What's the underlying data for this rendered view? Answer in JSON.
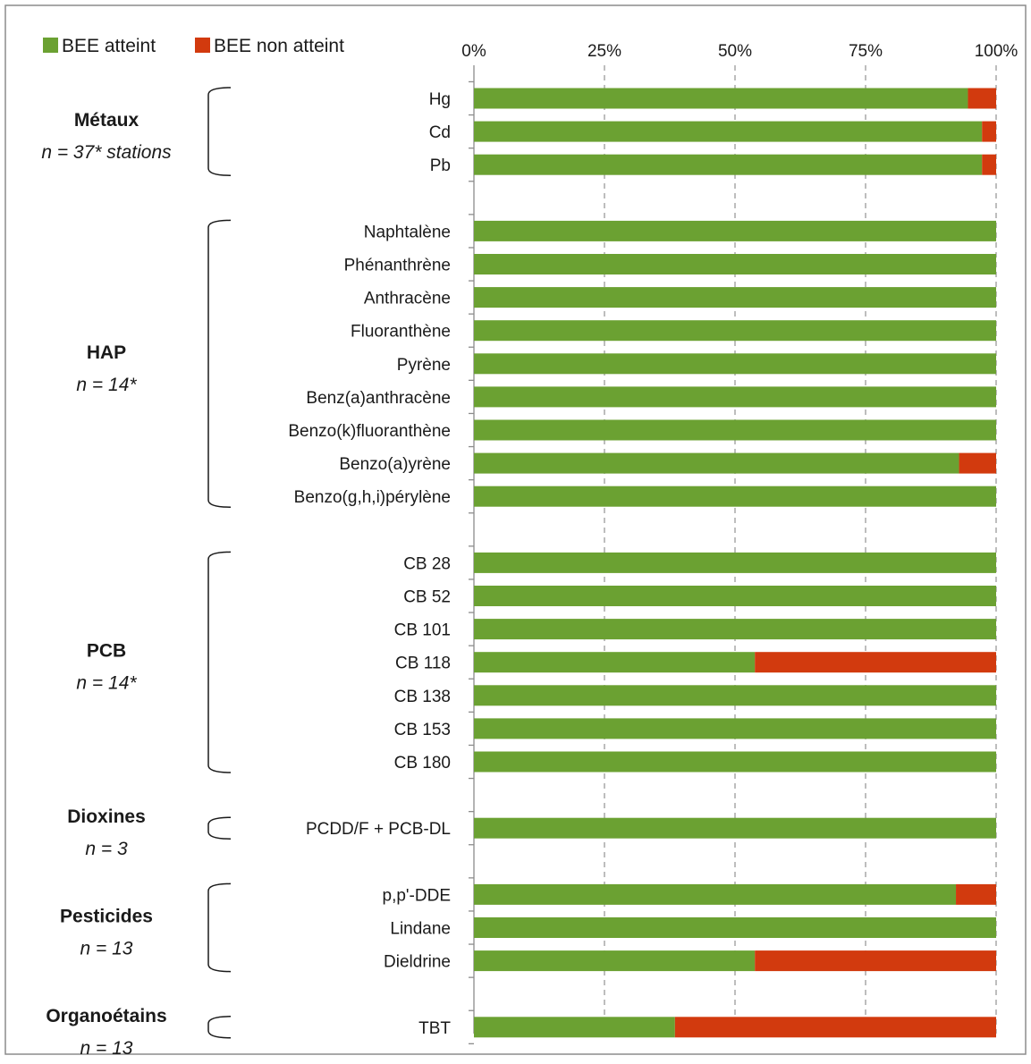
{
  "chart_data": {
    "type": "bar",
    "orientation": "horizontal",
    "stacked": true,
    "percent_scale": true,
    "x_ticks": [
      "0%",
      "25%",
      "50%",
      "75%",
      "100%"
    ],
    "xlim": [
      0,
      100
    ],
    "grid": "vertical dashed",
    "legend_placement": "top-left",
    "series": [
      {
        "name": "BEE atteint",
        "color": "#6ba132"
      },
      {
        "name": "BEE non atteint",
        "color": "#d23a0e"
      }
    ],
    "categories": [
      {
        "label": "Hg",
        "atteint": 94.6,
        "non_atteint": 5.4
      },
      {
        "label": "Cd",
        "atteint": 97.3,
        "non_atteint": 2.7
      },
      {
        "label": "Pb",
        "atteint": 97.3,
        "non_atteint": 2.7
      },
      {
        "label": "",
        "atteint": 0,
        "non_atteint": 0
      },
      {
        "label": "Naphtalène",
        "atteint": 100,
        "non_atteint": 0
      },
      {
        "label": "Phénanthrène",
        "atteint": 100,
        "non_atteint": 0
      },
      {
        "label": "Anthracène",
        "atteint": 100,
        "non_atteint": 0
      },
      {
        "label": "Fluoranthène",
        "atteint": 100,
        "non_atteint": 0
      },
      {
        "label": "Pyrène",
        "atteint": 100,
        "non_atteint": 0
      },
      {
        "label": "Benz(a)anthracène",
        "atteint": 100,
        "non_atteint": 0
      },
      {
        "label": "Benzo(k)fluoranthène",
        "atteint": 100,
        "non_atteint": 0
      },
      {
        "label": "Benzo(a)yrène",
        "atteint": 92.9,
        "non_atteint": 7.1
      },
      {
        "label": "Benzo(g,h,i)pérylène",
        "atteint": 100,
        "non_atteint": 0
      },
      {
        "label": "",
        "atteint": 0,
        "non_atteint": 0
      },
      {
        "label": "CB 28",
        "atteint": 100,
        "non_atteint": 0
      },
      {
        "label": "CB 52",
        "atteint": 100,
        "non_atteint": 0
      },
      {
        "label": "CB 101",
        "atteint": 100,
        "non_atteint": 0
      },
      {
        "label": "CB 118",
        "atteint": 53.8,
        "non_atteint": 46.2
      },
      {
        "label": "CB 138",
        "atteint": 100,
        "non_atteint": 0
      },
      {
        "label": "CB 153",
        "atteint": 100,
        "non_atteint": 0
      },
      {
        "label": "CB 180",
        "atteint": 100,
        "non_atteint": 0
      },
      {
        "label": "",
        "atteint": 0,
        "non_atteint": 0
      },
      {
        "label": "PCDD/F + PCB-DL",
        "atteint": 100,
        "non_atteint": 0
      },
      {
        "label": "",
        "atteint": 0,
        "non_atteint": 0
      },
      {
        "label": "p,p'-DDE",
        "atteint": 92.3,
        "non_atteint": 7.7
      },
      {
        "label": "Lindane",
        "atteint": 100,
        "non_atteint": 0
      },
      {
        "label": "Dieldrine",
        "atteint": 53.8,
        "non_atteint": 46.2
      },
      {
        "label": "",
        "atteint": 0,
        "non_atteint": 0
      },
      {
        "label": "TBT",
        "atteint": 38.5,
        "non_atteint": 61.5
      }
    ],
    "groups": [
      {
        "title": "Métaux",
        "subtitle": "n = 37* stations",
        "first": 0,
        "last": 2
      },
      {
        "title": "HAP",
        "subtitle": "n = 14*",
        "first": 4,
        "last": 12
      },
      {
        "title": "PCB",
        "subtitle": "n = 14*",
        "first": 14,
        "last": 20
      },
      {
        "title": "Dioxines",
        "subtitle": "n = 3",
        "first": 22,
        "last": 22
      },
      {
        "title": "Pesticides",
        "subtitle": "n = 13",
        "first": 24,
        "last": 26
      },
      {
        "title": "Organoétains",
        "subtitle": "n = 13",
        "first": 28,
        "last": 28
      }
    ]
  }
}
